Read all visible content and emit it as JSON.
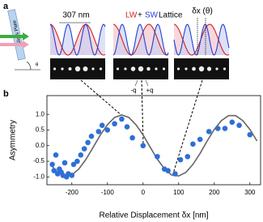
{
  "panel_a": {
    "label": "a",
    "glass_plate": "Glass Plate",
    "angle": "θ",
    "period": "307 nm",
    "lattice_title": {
      "lw": "LW",
      "plus": "+",
      "sw": "SW",
      "rest": "Lattice"
    },
    "shift": "δx (θ)",
    "orders": [
      "-q",
      "+q"
    ]
  },
  "panel_b": {
    "label": "b"
  },
  "chart_data": {
    "type": "scatter",
    "xlabel": "Relative Displacement δx [nm]",
    "ylabel": "Asymmetry",
    "xlim": [
      -270,
      330
    ],
    "ylim": [
      -1.25,
      1.6
    ],
    "xticks": [
      -200,
      -100,
      0,
      100,
      200,
      300
    ],
    "yticks": [
      {
        "value": -1,
        "label": "-1.0"
      },
      {
        "value": -0.5,
        "label": "-0.5"
      },
      {
        "value": 0,
        "label": "0.0"
      },
      {
        "value": 0.5,
        "label": "0.5"
      },
      {
        "value": 1,
        "label": "1.0"
      }
    ],
    "series": [
      {
        "color": "#2f6fd6",
        "style": "points",
        "x": [
          -255,
          -250,
          -245,
          -240,
          -235,
          -230,
          -225,
          -220,
          -215,
          -210,
          -200,
          -195,
          -185,
          -175,
          -165,
          -155,
          -145,
          -125,
          -115,
          -100,
          -80,
          -60,
          -45,
          -30,
          0,
          40,
          60,
          70,
          90,
          105,
          125,
          140,
          160,
          185,
          210,
          230,
          250,
          270,
          300
        ],
        "values": [
          -0.6,
          -0.8,
          -0.3,
          -0.9,
          -0.75,
          -0.85,
          -0.95,
          -0.55,
          -1.0,
          -0.9,
          -0.95,
          -0.6,
          -0.5,
          -0.3,
          -0.1,
          0.1,
          0.3,
          0.45,
          0.65,
          0.5,
          0.7,
          0.85,
          0.6,
          0.25,
          0.0,
          -0.35,
          -0.75,
          -0.8,
          -0.9,
          -0.45,
          -0.35,
          0.05,
          0.2,
          0.45,
          0.55,
          0.55,
          0.75,
          0.65,
          0.35
        ]
      },
      {
        "color": "#666666",
        "style": "line",
        "x": [
          -260,
          -240,
          -220,
          -200,
          -180,
          -160,
          -140,
          -120,
          -100,
          -80,
          -60,
          -40,
          -20,
          0,
          20,
          40,
          60,
          80,
          100,
          120,
          140,
          160,
          180,
          200,
          220,
          240,
          260,
          280,
          300,
          320
        ],
        "values": [
          -0.6,
          -0.86,
          -0.97,
          -0.94,
          -0.74,
          -0.43,
          -0.05,
          0.34,
          0.67,
          0.9,
          0.98,
          0.9,
          0.67,
          0.34,
          -0.05,
          -0.43,
          -0.74,
          -0.94,
          -0.97,
          -0.86,
          -0.6,
          -0.25,
          0.15,
          0.52,
          0.8,
          0.96,
          0.96,
          0.8,
          0.52,
          0.15
        ]
      }
    ]
  }
}
